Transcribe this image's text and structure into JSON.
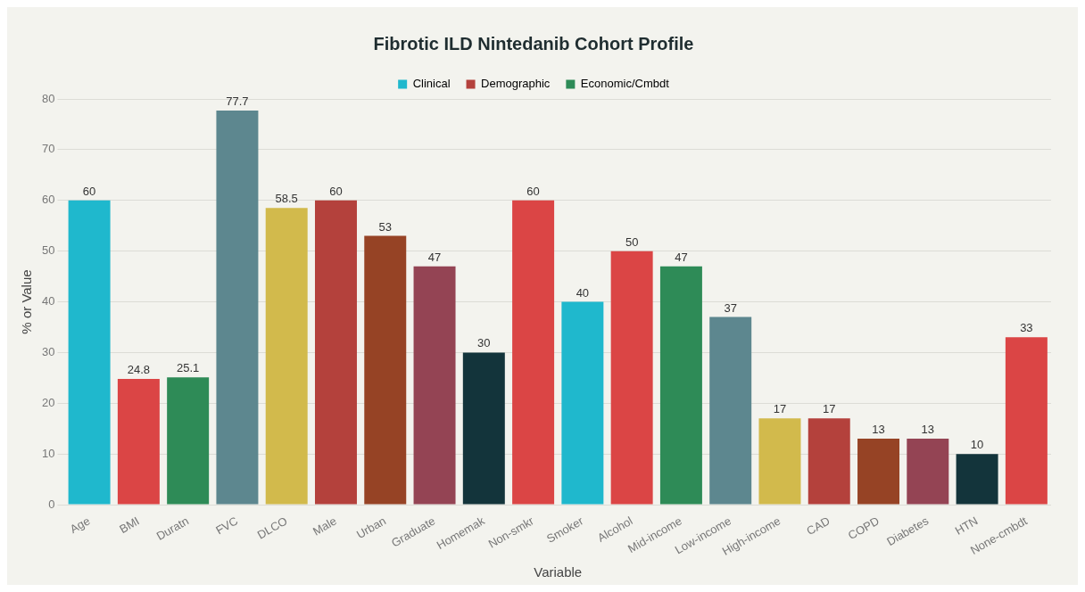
{
  "chart_data": {
    "type": "bar",
    "title": "Fibrotic ILD Nintedanib Cohort Profile",
    "xlabel": "Variable",
    "ylabel": "% or Value",
    "categories": [
      "Age",
      "BMI",
      "Duratn",
      "FVC",
      "DLCO",
      "Male",
      "Urban",
      "Graduate",
      "Homemak",
      "Non-smkr",
      "Smoker",
      "Alcohol",
      "Mid-income",
      "Low-income",
      "High-income",
      "CAD",
      "COPD",
      "Diabetes",
      "HTN",
      "None-cmbdt"
    ],
    "series": [
      {
        "name": "Clinical",
        "color": "#1fb8cd",
        "values": [
          60,
          24.8,
          25.1,
          77.7,
          58.5,
          null,
          null,
          null,
          null,
          null,
          null,
          null,
          null,
          null,
          null,
          null,
          null,
          null,
          null,
          null
        ],
        "colors": [
          "#1fb8cd",
          "#db4545",
          "#2e8b57",
          "#5d878f",
          "#d2ba4c",
          null,
          null,
          null,
          null,
          null,
          null,
          null,
          null,
          null,
          null,
          null,
          null,
          null,
          null,
          null
        ]
      },
      {
        "name": "Demographic",
        "color": "#b4413c",
        "values": [
          null,
          null,
          null,
          null,
          null,
          60,
          53,
          47,
          30,
          60,
          40,
          50,
          null,
          null,
          null,
          null,
          null,
          null,
          null,
          null
        ],
        "colors": [
          null,
          null,
          null,
          null,
          null,
          "#b4413c",
          "#964325",
          "#944454",
          "#13343b",
          "#db4545",
          "#1fb8cd",
          "#db4545",
          null,
          null,
          null,
          null,
          null,
          null,
          null,
          null
        ]
      },
      {
        "name": "Economic/Cmbdt",
        "color": "#2e8b57",
        "values": [
          null,
          null,
          null,
          null,
          null,
          null,
          null,
          null,
          null,
          null,
          null,
          null,
          47,
          37,
          17,
          17,
          13,
          13,
          10,
          33
        ],
        "colors": [
          null,
          null,
          null,
          null,
          null,
          null,
          null,
          null,
          null,
          null,
          null,
          null,
          "#2e8b57",
          "#5d878f",
          "#d2ba4c",
          "#b4413c",
          "#964325",
          "#944454",
          "#13343b",
          "#db4545"
        ]
      }
    ],
    "ylim": [
      0,
      80
    ],
    "yticks": [
      0,
      10,
      20,
      30,
      40,
      50,
      60,
      70,
      80
    ],
    "grid": "y",
    "legend": "top",
    "data_labels": true
  }
}
